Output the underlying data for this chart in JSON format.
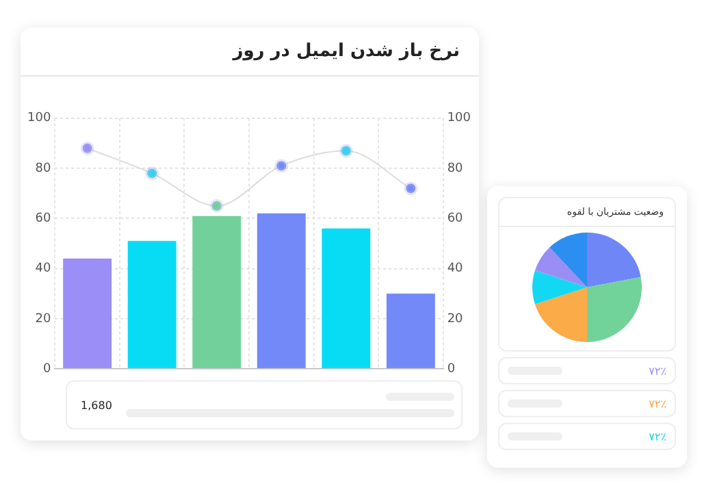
{
  "chart_data": [
    {
      "type": "bar",
      "title": "نرخ باز شدن ایمیل در روز",
      "categories": [
        null,
        null,
        null,
        null,
        null,
        null
      ],
      "series": [
        {
          "type": "bar",
          "colors": [
            "#9b8ef7",
            "#08dcf5",
            "#72d19a",
            "#7489f8",
            "#08dcf5",
            "#7489f8"
          ],
          "values": [
            44,
            51,
            61,
            62,
            56,
            30
          ]
        },
        {
          "type": "line",
          "color": "#dcdcdc",
          "colors": [
            "#9b8ef7",
            "#2fd6ee",
            "#72d19a",
            "#7489f8",
            "#2fd6ee",
            "#7489f8"
          ],
          "values": [
            88,
            78,
            65,
            81,
            87,
            72
          ]
        }
      ],
      "ylim": [
        0,
        100
      ],
      "yticks": [
        0,
        20,
        40,
        60,
        80,
        100
      ],
      "y2lim": [
        0,
        100
      ],
      "y2ticks": [
        0,
        20,
        40,
        60,
        80,
        100
      ],
      "grid": true,
      "legend": false,
      "marker": "circle",
      "tick_labels": "y",
      "annotations": [
        "1,680"
      ]
    },
    {
      "type": "pie",
      "title": "وضعیت مشتریان با لقوه",
      "categories": [
        null,
        null,
        null,
        null,
        null,
        null
      ],
      "values": [
        22,
        28,
        20,
        10,
        8,
        12
      ],
      "colors": [
        "#6f86f7",
        "#72d39a",
        "#fbab48",
        "#13d8f4",
        "#9a8ef5",
        "#2c8ef0"
      ],
      "legend": false,
      "annotations": [
        "۷۲٪",
        "۷۲٪",
        "۷۲٪"
      ]
    }
  ]
}
